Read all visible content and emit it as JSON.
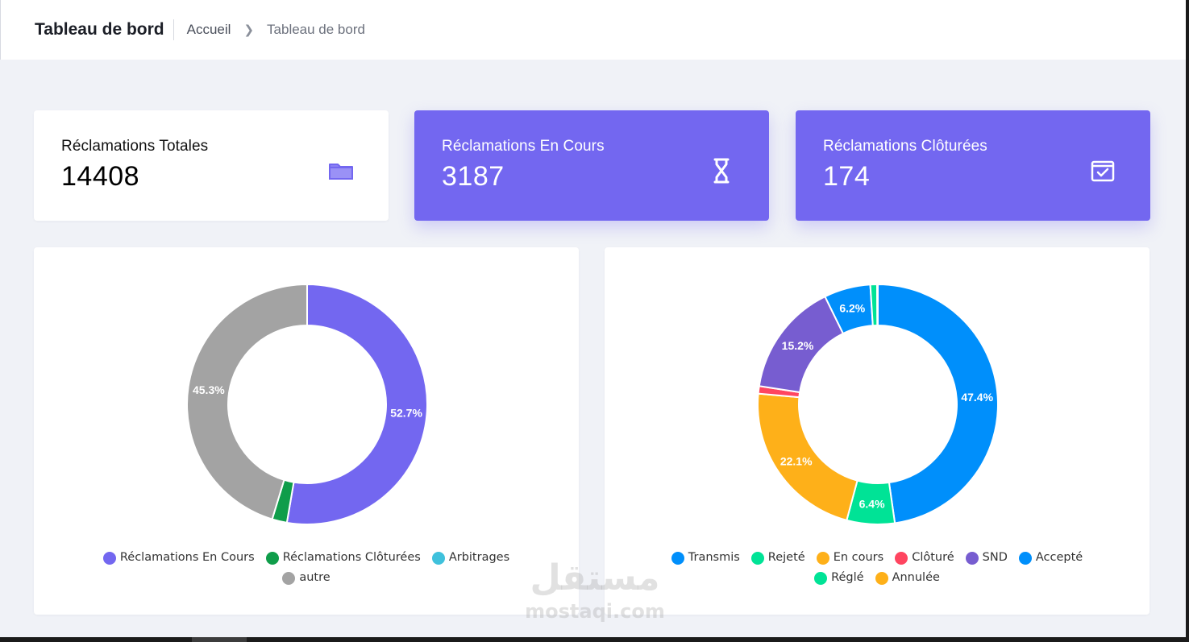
{
  "header": {
    "title": "Tableau de bord",
    "breadcrumb": {
      "home": "Accueil",
      "current": "Tableau de bord"
    }
  },
  "stats": [
    {
      "label": "Réclamations Totales",
      "value": "14408",
      "icon": "folder-icon",
      "color": "#ffffff"
    },
    {
      "label": "Réclamations En Cours",
      "value": "3187",
      "icon": "hourglass-icon",
      "color": "#7367f0"
    },
    {
      "label": "Réclamations Clôturées",
      "value": "174",
      "icon": "calendar-check-icon",
      "color": "#7367f0"
    }
  ],
  "chart_data": [
    {
      "type": "pie",
      "donut": true,
      "legend_position": "bottom",
      "slices": [
        {
          "name": "Réclamations En Cours",
          "value": 52.7,
          "label": "52.7%",
          "color": "#7367f0"
        },
        {
          "name": "Réclamations Clôturées",
          "value": 2.0,
          "label": "",
          "color": "#0f9d4a"
        },
        {
          "name": "Arbitrages",
          "value": 0,
          "label": "",
          "color": "#3fc1dc"
        },
        {
          "name": "autre",
          "value": 45.3,
          "label": "45.3%",
          "color": "#a3a3a3"
        }
      ]
    },
    {
      "type": "pie",
      "donut": true,
      "legend_position": "bottom",
      "slices": [
        {
          "name": "Transmis",
          "value": 47.4,
          "label": "47.4%",
          "color": "#008ffb"
        },
        {
          "name": "Rejeté",
          "value": 6.4,
          "label": "6.4%",
          "color": "#00e396"
        },
        {
          "name": "En cours",
          "value": 22.1,
          "label": "22.1%",
          "color": "#feb019"
        },
        {
          "name": "Clôturé",
          "value": 1.0,
          "label": "",
          "color": "#ff4560"
        },
        {
          "name": "SND",
          "value": 15.2,
          "label": "15.2%",
          "color": "#775dd0"
        },
        {
          "name": "Accepté",
          "value": 6.2,
          "label": "6.2%",
          "color": "#008ffb"
        },
        {
          "name": "Réglé",
          "value": 0.9,
          "label": "",
          "color": "#00e396"
        },
        {
          "name": "Annulée",
          "value": 0.1,
          "label": "",
          "color": "#feb019"
        }
      ]
    }
  ],
  "watermark": {
    "logo": "مستقل",
    "url": "mostaqi.com"
  }
}
